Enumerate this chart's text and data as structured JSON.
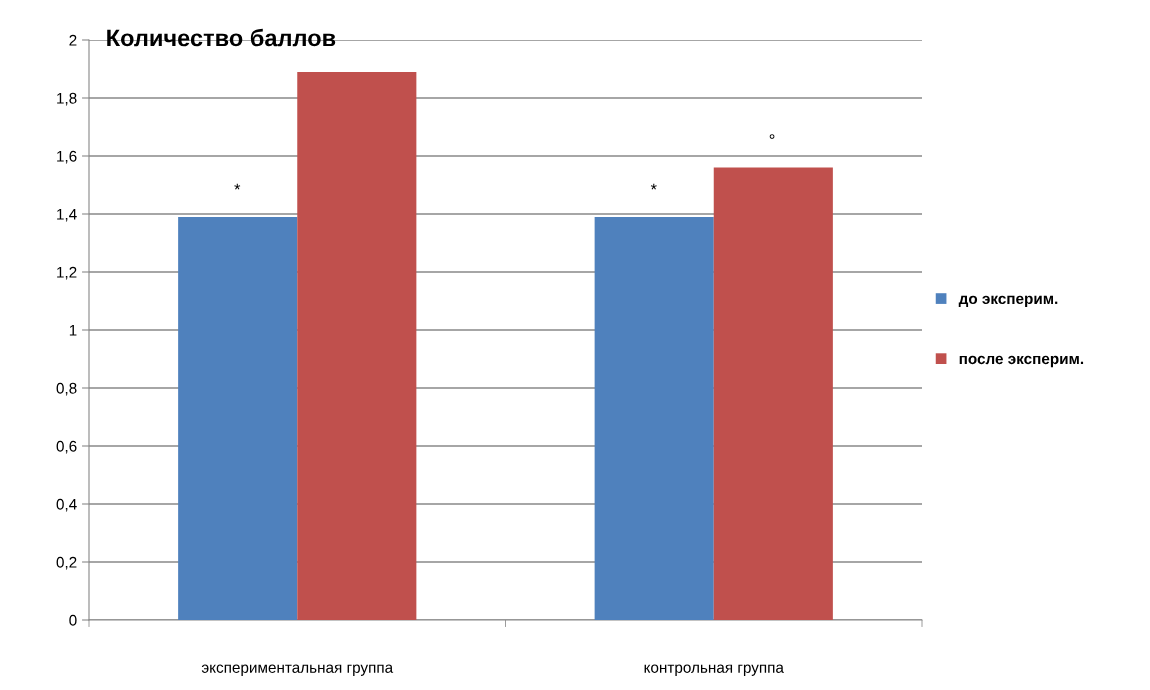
{
  "chart_data": {
    "type": "bar",
    "title": "Количество баллов",
    "categories": [
      "экспериментальная группа",
      "контрольная группа"
    ],
    "series": [
      {
        "name": "до эксперим.",
        "color": "#4f81bd",
        "values": [
          1.39,
          1.39
        ]
      },
      {
        "name": "после эксперим.",
        "color": "#c0504d",
        "values": [
          1.89,
          1.56
        ]
      }
    ],
    "ylim": [
      0,
      2
    ],
    "yticks": [
      0,
      {
        "value": 0.2,
        "label": "0,2"
      },
      {
        "value": 0.4,
        "label": "0,4"
      },
      {
        "value": 0.6,
        "label": "0,6"
      },
      {
        "value": 0.8,
        "label": "0,8"
      },
      1,
      {
        "value": 1.2,
        "label": "1,2"
      },
      {
        "value": 1.4,
        "label": "1,4"
      },
      {
        "value": 1.6,
        "label": "1,6"
      },
      {
        "value": 1.8,
        "label": "1,8"
      },
      2
    ],
    "annotations": [
      "*",
      "*",
      "°"
    ],
    "grid": "y",
    "legend": "right"
  }
}
